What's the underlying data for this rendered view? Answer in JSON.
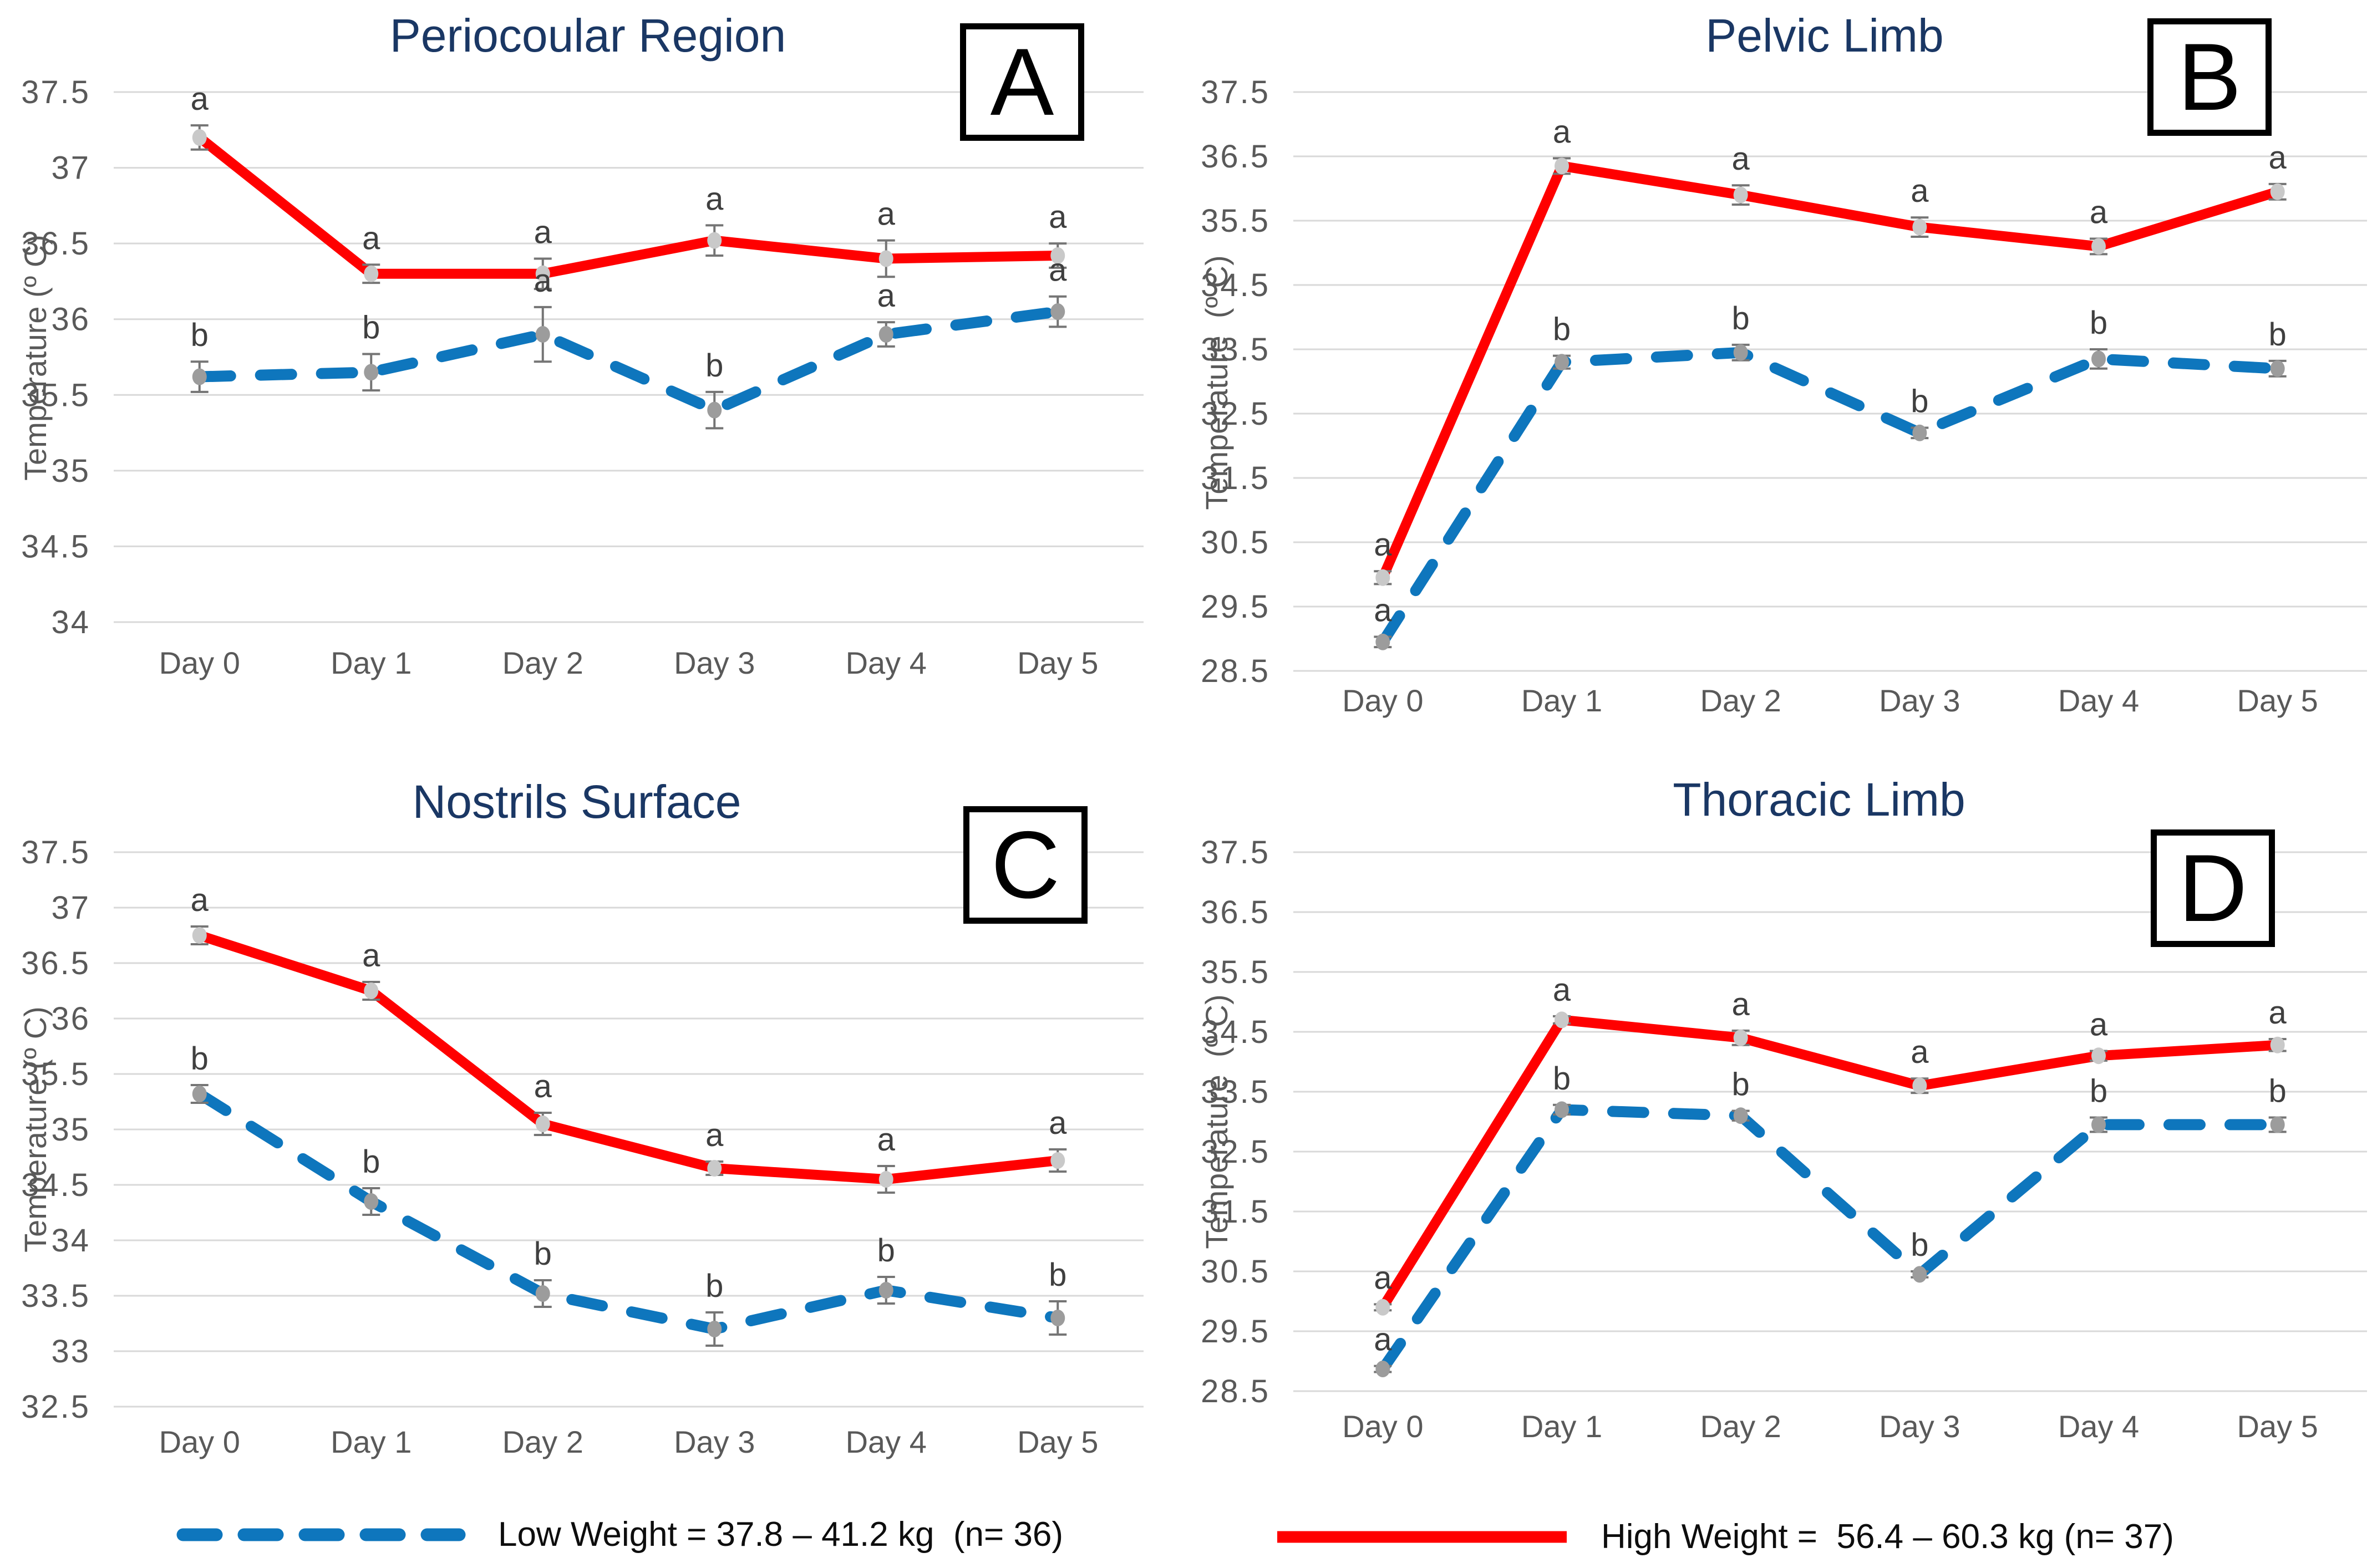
{
  "figure": {
    "background": "#FFFFFF",
    "layout": "2x2 line-chart panels with shared bottom legend"
  },
  "colors": {
    "high_weight_line": "#FF0000",
    "low_weight_line": "#0E76BD",
    "title_text": "#1A3764",
    "axis_text": "#595959",
    "gridline": "#D9D9D9",
    "sig_letter": "#3F3F3F",
    "error_bar": "#757575",
    "marker_high": "#C9C9C9",
    "marker_low": "#9C9C9C",
    "letterbox_border": "#000000"
  },
  "legend": {
    "position": "bottom",
    "items": [
      {
        "series": "Low Weight",
        "line_style": "dashed",
        "color_key": "low_weight_line",
        "label": "Low Weight = 37.8 – 41.2 kg  (n= 36)"
      },
      {
        "series": "High Weight",
        "line_style": "solid",
        "color_key": "high_weight_line",
        "label": "High Weight =  56.4 – 60.3 kg (n= 37)"
      }
    ]
  },
  "chart_data": [
    {
      "id": "A",
      "panel_letter": "A",
      "type": "line",
      "title": "Periocoular Region",
      "xlabel": "",
      "ylabel": "Temperature (º C)",
      "categories": [
        "Day 0",
        "Day 1",
        "Day 2",
        "Day 3",
        "Day 4",
        "Day 5"
      ],
      "ylim": [
        34,
        37.5
      ],
      "yticks": [
        37.5,
        37,
        36.5,
        36,
        35.5,
        35,
        34.5,
        34
      ],
      "grid": true,
      "series": [
        {
          "name": "High Weight",
          "color_key": "high_weight_line",
          "marker_key": "marker_high",
          "dash": false,
          "values": [
            37.2,
            36.3,
            36.3,
            36.52,
            36.4,
            36.42
          ],
          "errors": [
            0.08,
            0.06,
            0.1,
            0.1,
            0.12,
            0.08
          ],
          "letters": [
            "a",
            "a",
            "a",
            "a",
            "a",
            "a"
          ]
        },
        {
          "name": "Low Weight",
          "color_key": "low_weight_line",
          "marker_key": "marker_low",
          "dash": true,
          "values": [
            35.62,
            35.65,
            35.9,
            35.4,
            35.9,
            36.05
          ],
          "errors": [
            0.1,
            0.12,
            0.18,
            0.12,
            0.08,
            0.1
          ],
          "letters": [
            "b",
            "b",
            "a",
            "b",
            "a",
            "a"
          ]
        }
      ]
    },
    {
      "id": "B",
      "panel_letter": "B",
      "type": "line",
      "title": "Pelvic Limb",
      "xlabel": "",
      "ylabel": "Temperature  (º C)",
      "categories": [
        "Day 0",
        "Day 1",
        "Day 2",
        "Day 3",
        "Day 4",
        "Day 5"
      ],
      "ylim": [
        28.5,
        37.5
      ],
      "yticks": [
        37.5,
        36.5,
        35.5,
        34.5,
        33.5,
        32.5,
        31.5,
        30.5,
        29.5,
        28.5
      ],
      "grid": true,
      "series": [
        {
          "name": "High Weight",
          "color_key": "high_weight_line",
          "marker_key": "marker_high",
          "dash": false,
          "values": [
            29.95,
            36.35,
            35.9,
            35.4,
            35.1,
            35.95
          ],
          "errors": [
            0.1,
            0.12,
            0.15,
            0.15,
            0.12,
            0.12
          ],
          "letters": [
            "a",
            "a",
            "a",
            "a",
            "a",
            "a"
          ]
        },
        {
          "name": "Low Weight",
          "color_key": "low_weight_line",
          "marker_key": "marker_low",
          "dash": true,
          "values": [
            28.95,
            33.3,
            33.45,
            32.2,
            33.35,
            33.2
          ],
          "errors": [
            0.08,
            0.1,
            0.12,
            0.08,
            0.15,
            0.12
          ],
          "letters": [
            "a",
            "b",
            "b",
            "b",
            "b",
            "b"
          ]
        }
      ]
    },
    {
      "id": "C",
      "panel_letter": "C",
      "type": "line",
      "title": "Nostrils Surface",
      "xlabel": "",
      "ylabel": "Temperature (º C)",
      "categories": [
        "Day 0",
        "Day 1",
        "Day 2",
        "Day 3",
        "Day 4",
        "Day 5"
      ],
      "ylim": [
        32.5,
        37.5
      ],
      "yticks": [
        37.5,
        37,
        36.5,
        36,
        35.5,
        35,
        34.5,
        34,
        33.5,
        33,
        32.5
      ],
      "grid": true,
      "series": [
        {
          "name": "High Weight",
          "color_key": "high_weight_line",
          "marker_key": "marker_high",
          "dash": false,
          "values": [
            36.75,
            36.25,
            35.05,
            34.65,
            34.55,
            34.72
          ],
          "errors": [
            0.08,
            0.08,
            0.1,
            0.06,
            0.12,
            0.1
          ],
          "letters": [
            "a",
            "a",
            "a",
            "a",
            "a",
            "a"
          ]
        },
        {
          "name": "Low Weight",
          "color_key": "low_weight_line",
          "marker_key": "marker_low",
          "dash": true,
          "values": [
            35.32,
            34.35,
            33.52,
            33.2,
            33.55,
            33.3
          ],
          "errors": [
            0.08,
            0.12,
            0.12,
            0.15,
            0.12,
            0.15
          ],
          "letters": [
            "b",
            "b",
            "b",
            "b",
            "b",
            "b"
          ]
        }
      ]
    },
    {
      "id": "D",
      "panel_letter": "D",
      "type": "line",
      "title": "Thoracic Limb",
      "xlabel": "",
      "ylabel": "Temperature  (º C)",
      "categories": [
        "Day 0",
        "Day 1",
        "Day 2",
        "Day 3",
        "Day 4",
        "Day 5"
      ],
      "ylim": [
        28.5,
        37.5
      ],
      "yticks": [
        37.5,
        36.5,
        35.5,
        34.5,
        33.5,
        32.5,
        31.5,
        30.5,
        29.5,
        28.5
      ],
      "grid": true,
      "series": [
        {
          "name": "High Weight",
          "color_key": "high_weight_line",
          "marker_key": "marker_high",
          "dash": false,
          "values": [
            29.9,
            34.7,
            34.4,
            33.6,
            34.1,
            34.28
          ],
          "errors": [
            0.05,
            0.06,
            0.12,
            0.12,
            0.08,
            0.1
          ],
          "letters": [
            "a",
            "a",
            "a",
            "a",
            "a",
            "a"
          ]
        },
        {
          "name": "Low Weight",
          "color_key": "low_weight_line",
          "marker_key": "marker_low",
          "dash": true,
          "values": [
            28.87,
            33.2,
            33.1,
            30.45,
            32.95,
            32.95
          ],
          "errors": [
            0.05,
            0.08,
            0.08,
            0.05,
            0.12,
            0.12
          ],
          "letters": [
            "a",
            "b",
            "b",
            "b",
            "b",
            "b"
          ]
        }
      ]
    }
  ]
}
